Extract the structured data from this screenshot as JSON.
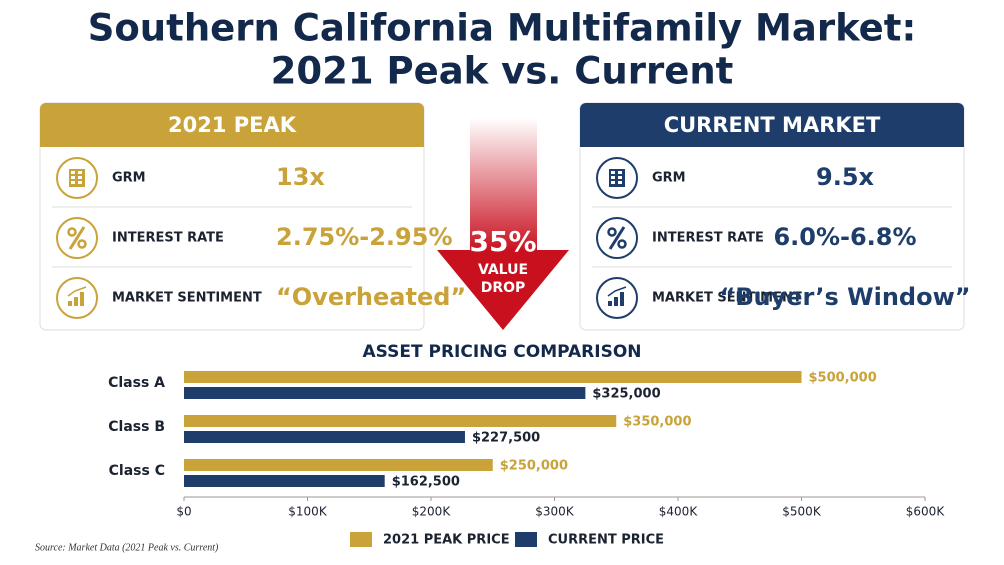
{
  "title": [
    "Southern California Multifamily Market:",
    "2021 Peak vs. Current"
  ],
  "panels": [
    {
      "title": "2021 PEAK",
      "rows": [
        {
          "label": "GRM",
          "value": "13x"
        },
        {
          "label": "INTEREST RATE",
          "value": "2.75%-2.95%"
        },
        {
          "label": "MARKET SENTIMENT",
          "value": "“Overheated”"
        }
      ]
    },
    {
      "title": "CURRENT MARKET",
      "rows": [
        {
          "label": "GRM",
          "value": "9.5x"
        },
        {
          "label": "INTEREST RATE",
          "value": "6.0%-6.8%"
        },
        {
          "label": "MARKET SENTIMENT",
          "value": "“Buyer’s Window”"
        }
      ]
    }
  ],
  "drop": {
    "percent": "35%",
    "label": [
      "VALUE",
      "DROP"
    ]
  },
  "chart_data": {
    "type": "bar",
    "orientation": "horizontal",
    "title": "ASSET PRICING COMPARISON",
    "categories": [
      "Class A",
      "Class B",
      "Class C"
    ],
    "series": [
      {
        "name": "2021 PEAK PRICE",
        "color": "#c9a23a",
        "values": [
          500000,
          350000,
          250000
        ],
        "value_labels": [
          "$500,000",
          "$350,000",
          "$250,000"
        ]
      },
      {
        "name": "CURRENT PRICE",
        "color": "#1f3d6b",
        "values": [
          325000,
          227500,
          162500
        ],
        "value_labels": [
          "$325,000",
          "$227,500",
          "$162,500"
        ]
      }
    ],
    "xlim": [
      0,
      600000
    ],
    "xticks": [
      {
        "value": 0,
        "label": "$0"
      },
      {
        "value": 100000,
        "label": "$100K"
      },
      {
        "value": 200000,
        "label": "$200K"
      },
      {
        "value": 300000,
        "label": "$300K"
      },
      {
        "value": 400000,
        "label": "$400K"
      },
      {
        "value": 500000,
        "label": "$500K"
      },
      {
        "value": 600000,
        "label": "$600K"
      }
    ]
  },
  "source": "Source: Market Data (2021 Peak vs. Current)"
}
